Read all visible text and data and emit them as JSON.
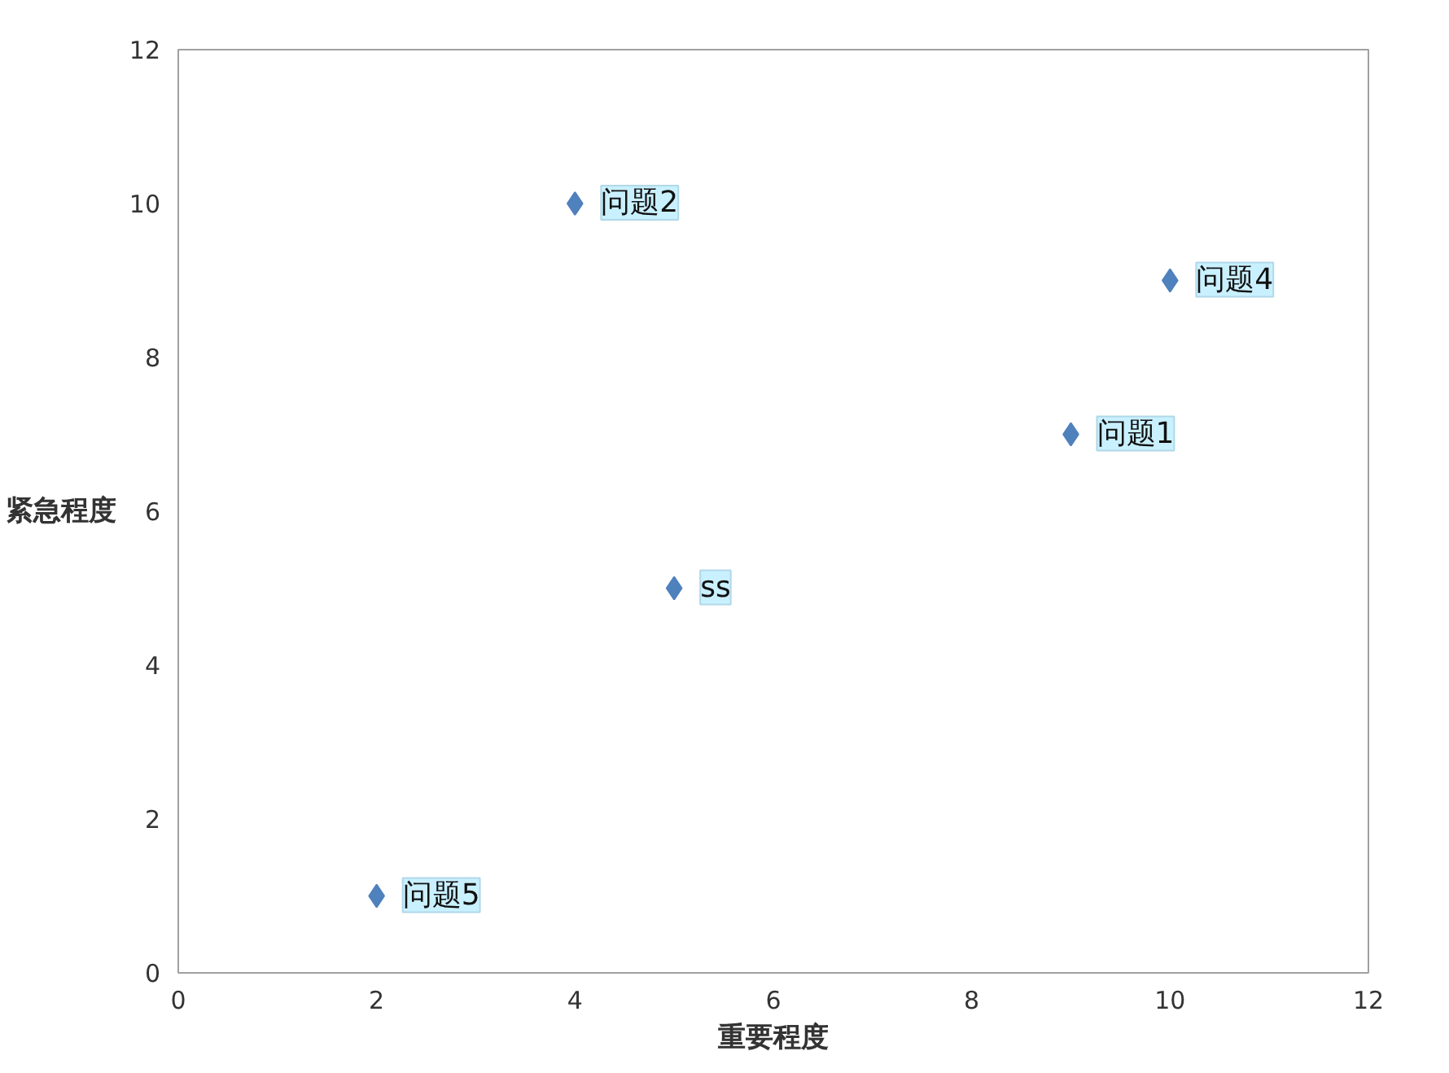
{
  "chart_data": {
    "type": "scatter",
    "xlabel": "重要程度",
    "ylabel": "紧急程度",
    "x": [
      9,
      4,
      10,
      5,
      2
    ],
    "series": [
      {
        "color": "#4f81bd",
        "values": [
          7,
          10,
          9,
          5,
          1
        ]
      }
    ],
    "marker": "diamond",
    "grid": false,
    "xlim": [
      0,
      12
    ],
    "ylim": [
      0,
      12
    ],
    "xticks": [
      0,
      2,
      4,
      6,
      8,
      10,
      12
    ],
    "yticks": [
      0,
      2,
      4,
      6,
      8,
      10,
      12
    ],
    "annotations": [
      {
        "text": "问题1",
        "x": 9,
        "y": 7
      },
      {
        "text": "问题2",
        "x": 4,
        "y": 10
      },
      {
        "text": "问题4",
        "x": 10,
        "y": 9
      },
      {
        "text": "ss",
        "x": 5,
        "y": 5
      },
      {
        "text": "问题5",
        "x": 2,
        "y": 1
      }
    ]
  }
}
